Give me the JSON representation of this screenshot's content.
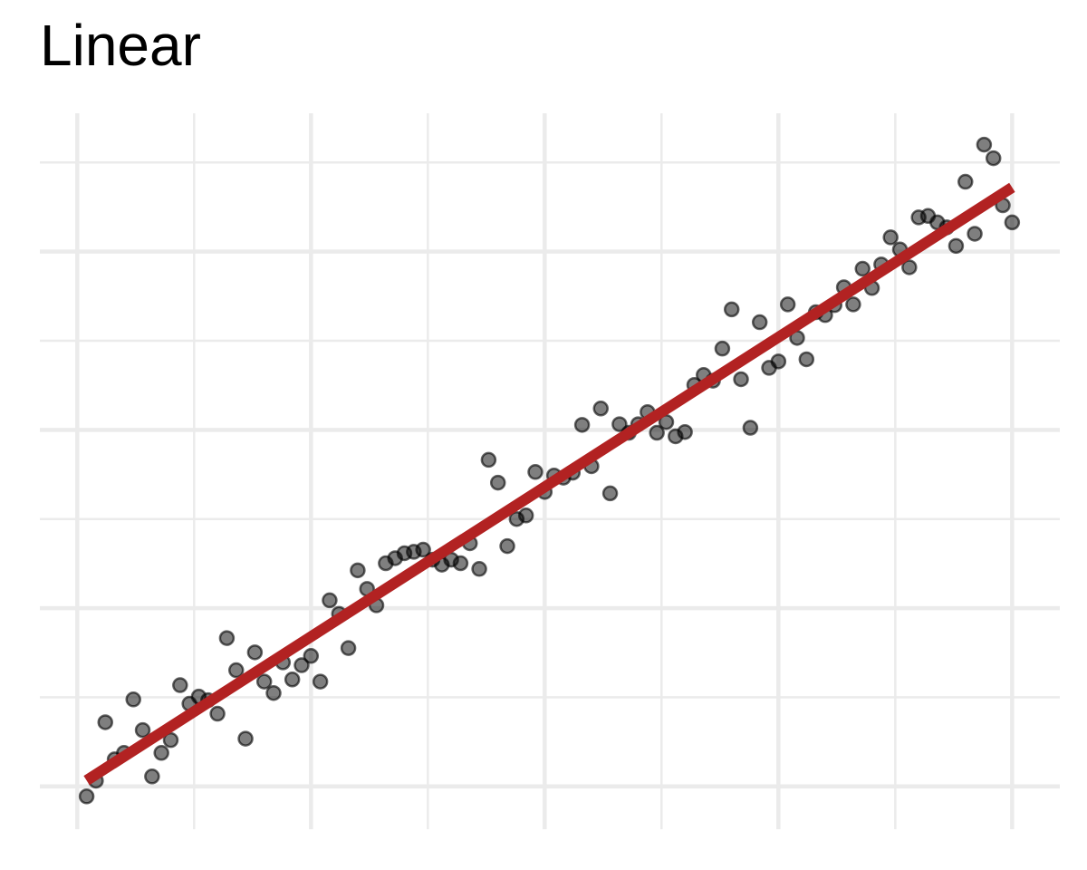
{
  "chart_data": {
    "type": "scatter",
    "title": "Linear",
    "xlabel": "",
    "ylabel": "",
    "xlim": [
      -0.04,
      1.051
    ],
    "ylim": [
      -0.06,
      0.944
    ],
    "grid": true,
    "x_major_ticks": [
      0,
      0.25,
      0.5,
      0.75,
      1.0
    ],
    "x_minor_ticks": [
      0.125,
      0.375,
      0.625,
      0.875
    ],
    "y_major_ticks": [
      0,
      0.25,
      0.5,
      0.75
    ],
    "y_minor_ticks": [
      0.125,
      0.375,
      0.625,
      0.875
    ],
    "tick_labels_shown": false,
    "point_color": "#000000",
    "point_alpha": 0.5,
    "line_color": "#b22222",
    "grid_color": "#ebebeb",
    "fit_line": {
      "intercept": 0.0,
      "slope": 0.84,
      "x_range": [
        0.01,
        1.0
      ]
    },
    "x": [
      0.01,
      0.02,
      0.03,
      0.04,
      0.05,
      0.06,
      0.07,
      0.08,
      0.09,
      0.1,
      0.11,
      0.12,
      0.13,
      0.14,
      0.15,
      0.16,
      0.17,
      0.18,
      0.19,
      0.2,
      0.21,
      0.22,
      0.23,
      0.24,
      0.25,
      0.26,
      0.27,
      0.28,
      0.29,
      0.3,
      0.31,
      0.32,
      0.33,
      0.34,
      0.35,
      0.36,
      0.37,
      0.38,
      0.39,
      0.4,
      0.41,
      0.42,
      0.43,
      0.44,
      0.45,
      0.46,
      0.47,
      0.48,
      0.49,
      0.5,
      0.51,
      0.52,
      0.53,
      0.54,
      0.55,
      0.56,
      0.57,
      0.58,
      0.59,
      0.6,
      0.61,
      0.62,
      0.63,
      0.64,
      0.65,
      0.66,
      0.67,
      0.68,
      0.69,
      0.7,
      0.71,
      0.72,
      0.73,
      0.74,
      0.75,
      0.76,
      0.77,
      0.78,
      0.79,
      0.8,
      0.81,
      0.82,
      0.83,
      0.84,
      0.85,
      0.86,
      0.87,
      0.88,
      0.89,
      0.9,
      0.91,
      0.92,
      0.93,
      0.94,
      0.95,
      0.96,
      0.97,
      0.98,
      0.99,
      1.0
    ],
    "y": [
      -0.014,
      0.008,
      0.09,
      0.038,
      0.047,
      0.122,
      0.079,
      0.014,
      0.047,
      0.065,
      0.142,
      0.116,
      0.126,
      0.121,
      0.102,
      0.208,
      0.163,
      0.067,
      0.188,
      0.147,
      0.131,
      0.174,
      0.15,
      0.17,
      0.183,
      0.147,
      0.261,
      0.242,
      0.194,
      0.303,
      0.277,
      0.254,
      0.313,
      0.32,
      0.327,
      0.329,
      0.332,
      0.318,
      0.311,
      0.318,
      0.313,
      0.341,
      0.305,
      0.458,
      0.426,
      0.337,
      0.375,
      0.38,
      0.441,
      0.413,
      0.436,
      0.433,
      0.44,
      0.507,
      0.449,
      0.53,
      0.411,
      0.508,
      0.496,
      0.508,
      0.525,
      0.496,
      0.511,
      0.491,
      0.497,
      0.563,
      0.577,
      0.569,
      0.614,
      0.669,
      0.571,
      0.503,
      0.651,
      0.587,
      0.596,
      0.676,
      0.629,
      0.599,
      0.665,
      0.661,
      0.675,
      0.7,
      0.676,
      0.726,
      0.699,
      0.732,
      0.77,
      0.753,
      0.728,
      0.798,
      0.8,
      0.791,
      0.784,
      0.758,
      0.848,
      0.775,
      0.9,
      0.881,
      0.815,
      0.791
    ]
  }
}
